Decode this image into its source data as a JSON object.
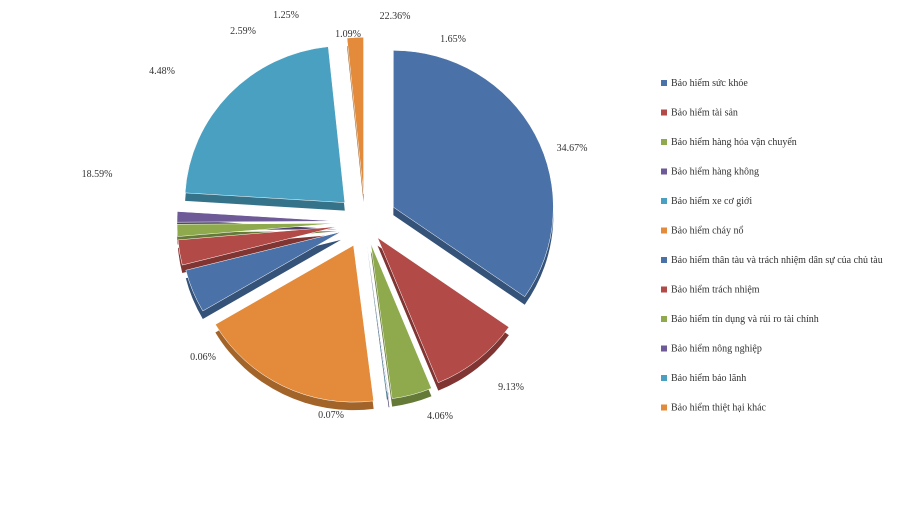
{
  "chart_data": {
    "type": "pie",
    "title": "",
    "exploded": true,
    "style": "3d",
    "legend_position": "right",
    "categories": [
      "Bảo hiểm sức khỏe",
      "Bảo hiểm tài sản",
      "Bảo hiểm hàng hóa vận  chuyển",
      "Bảo hiểm hàng không",
      "Bảo hiểm xe cơ giới",
      "Bảo hiểm cháy nổ",
      "Bảo hiểm thân tàu và trách nhiệm dân sự của chủ tàu",
      "Bảo hiểm trách nhiệm",
      "Bảo hiểm tín dụng và rủi ro tài chính",
      "Bảo hiểm nông nghiệp",
      "Bảo hiểm bảo lãnh",
      "Bảo hiểm thiệt hại khác"
    ],
    "values": [
      34.67,
      9.13,
      4.06,
      1.09,
      22.36,
      18.59,
      4.48,
      2.59,
      1.25,
      0.07,
      0.06,
      1.65
    ],
    "data_labels": [
      "34.67%",
      "9.13%",
      "4.06%",
      "1.09%",
      "22.36%",
      "18.59%",
      "4.48%",
      "2.59%",
      "1.25%",
      "0.07%",
      "0.06%",
      "1.65%"
    ],
    "slice_legend_index": [
      0,
      1,
      2,
      9,
      10,
      5,
      6,
      7,
      8,
      3,
      4,
      11
    ],
    "colors": [
      "#4a72a8",
      "#b24a47",
      "#8eaa4c",
      "#6d5a96",
      "#4aa0c0",
      "#e38b3a",
      "#4a72a8",
      "#b24a47",
      "#8eaa4c",
      "#6d5a96",
      "#4aa0c0",
      "#e38b3a"
    ]
  }
}
